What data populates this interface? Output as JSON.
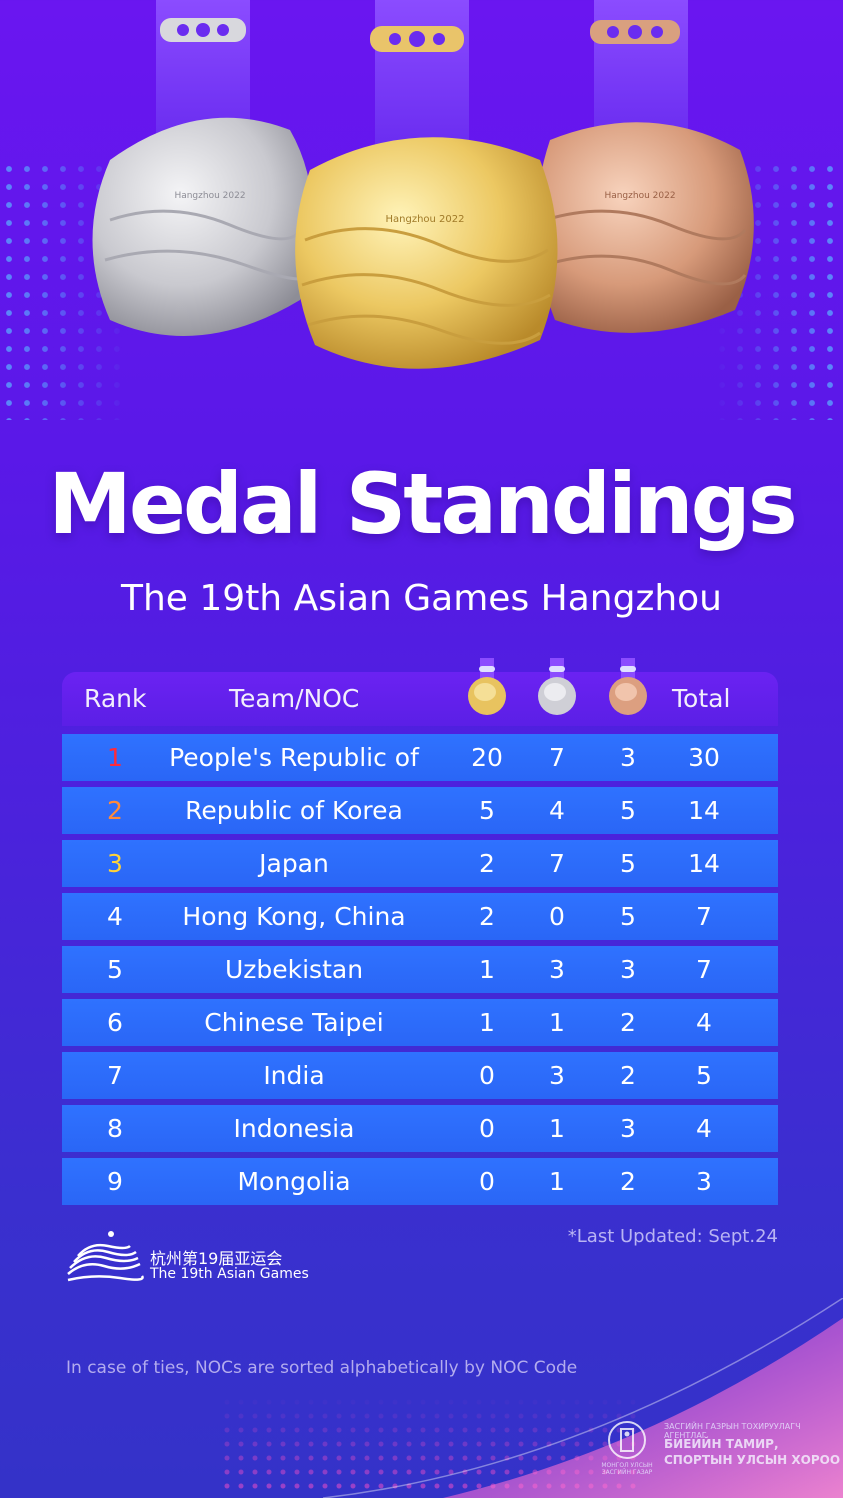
{
  "title": "Medal Standings",
  "subtitle": "The 19th Asian Games Hangzhou",
  "header": {
    "rank": "Rank",
    "team": "Team/NOC",
    "total": "Total",
    "medal_icons": [
      "gold-medal-icon",
      "silver-medal-icon",
      "bronze-medal-icon"
    ]
  },
  "colors": {
    "rank1": "#ff2a3a",
    "rank2": "#ff8a3a",
    "rank3": "#ffd23a",
    "row": "#2f72ff",
    "header": "#6b22f2"
  },
  "rows": [
    {
      "rank": "1",
      "team": "People's Republic of China",
      "gold": "20",
      "silver": "7",
      "bronze": "3",
      "total": "30"
    },
    {
      "rank": "2",
      "team": "Republic of Korea",
      "gold": "5",
      "silver": "4",
      "bronze": "5",
      "total": "14"
    },
    {
      "rank": "3",
      "team": "Japan",
      "gold": "2",
      "silver": "7",
      "bronze": "5",
      "total": "14"
    },
    {
      "rank": "4",
      "team": "Hong Kong, China",
      "gold": "2",
      "silver": "0",
      "bronze": "5",
      "total": "7"
    },
    {
      "rank": "5",
      "team": "Uzbekistan",
      "gold": "1",
      "silver": "3",
      "bronze": "3",
      "total": "7"
    },
    {
      "rank": "6",
      "team": "Chinese Taipei",
      "gold": "1",
      "silver": "1",
      "bronze": "2",
      "total": "4"
    },
    {
      "rank": "7",
      "team": "India",
      "gold": "0",
      "silver": "3",
      "bronze": "2",
      "total": "5"
    },
    {
      "rank": "8",
      "team": "Indonesia",
      "gold": "0",
      "silver": "1",
      "bronze": "3",
      "total": "4"
    },
    {
      "rank": "9",
      "team": "Mongolia",
      "gold": "0",
      "silver": "1",
      "bronze": "2",
      "total": "3"
    }
  ],
  "last_updated": "*Last Updated: Sept.24",
  "logo": {
    "cn": "杭州第19届亚运会",
    "en": "The 19th Asian Games"
  },
  "note": "In case of ties, NOCs are sorted alphabetically by NOC Code",
  "medal_text": "Hangzhou 2022",
  "government": {
    "line1": "ЗАСГИЙН ГАЗРЫН ТОХИРУУЛАГЧ АГЕНТЛАГ",
    "line2": "БИЕИЙН ТАМИР, СПОРТЫН УЛСЫН ХОРОО",
    "emblem_caption": "МОНГОЛ УЛСЫН ЗАСГИЙН ГАЗАР"
  }
}
